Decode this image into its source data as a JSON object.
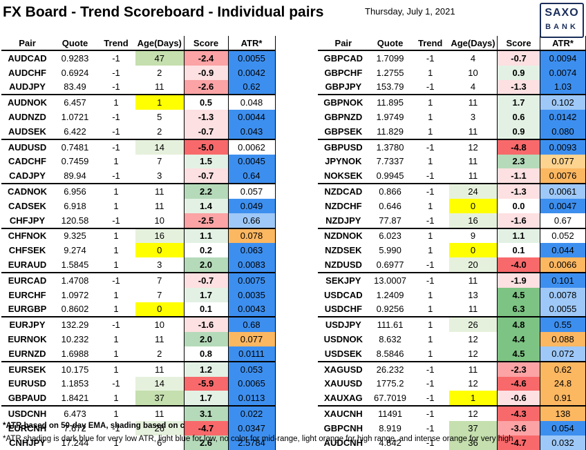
{
  "header": {
    "title": "FX Board - Trend Scoreboard - Individual pairs",
    "date": "Thursday, July 1, 2021",
    "logo_line1": "SAXO",
    "logo_line2": "BANK"
  },
  "columns": [
    "Pair",
    "Quote",
    "Trend",
    "Age(Days)",
    "Score",
    "ATR*"
  ],
  "colors": {
    "score_dark_red": "#f8696b",
    "score_red": "#fba3a5",
    "score_light_red": "#fde0e1",
    "score_dark_green": "#7dc383",
    "score_green": "#b5dab9",
    "score_light_green": "#e3f1e4",
    "atr_dark_blue": "#3d8fef",
    "atr_light_blue": "#9ec8f7",
    "atr_light_orange": "#fcd38f",
    "atr_orange": "#fcb761",
    "age_yellow": "#ffff00",
    "age_green": "#c5dfae",
    "age_light_green": "#e6f1dd"
  },
  "left_rows": [
    {
      "pair": "AUDCAD",
      "quote": "0.9283",
      "trend": "-1",
      "age": "47",
      "score": "-2.4",
      "atr": "0.0055",
      "age_c": "age_green",
      "score_c": "score_red",
      "atr_c": "atr_dark_blue"
    },
    {
      "pair": "AUDCHF",
      "quote": "0.6924",
      "trend": "-1",
      "age": "2",
      "score": "-0.9",
      "atr": "0.0042",
      "age_c": "",
      "score_c": "score_light_red",
      "atr_c": "atr_dark_blue"
    },
    {
      "pair": "AUDJPY",
      "quote": "83.49",
      "trend": "-1",
      "age": "11",
      "score": "-2.6",
      "atr": "0.62",
      "age_c": "",
      "score_c": "score_red",
      "atr_c": "atr_dark_blue"
    },
    {
      "pair": "AUDNOK",
      "quote": "6.457",
      "trend": "1",
      "age": "1",
      "score": "0.5",
      "atr": "0.048",
      "age_c": "age_yellow",
      "score_c": "",
      "atr_c": ""
    },
    {
      "pair": "AUDNZD",
      "quote": "1.0721",
      "trend": "-1",
      "age": "5",
      "score": "-1.3",
      "atr": "0.0044",
      "age_c": "",
      "score_c": "score_light_red",
      "atr_c": "atr_dark_blue"
    },
    {
      "pair": "AUDSEK",
      "quote": "6.422",
      "trend": "-1",
      "age": "2",
      "score": "-0.7",
      "atr": "0.043",
      "age_c": "",
      "score_c": "score_light_red",
      "atr_c": "atr_dark_blue"
    },
    {
      "pair": "AUDUSD",
      "quote": "0.7481",
      "trend": "-1",
      "age": "14",
      "score": "-5.0",
      "atr": "0.0062",
      "age_c": "age_light_green",
      "score_c": "score_dark_red",
      "atr_c": ""
    },
    {
      "pair": "CADCHF",
      "quote": "0.7459",
      "trend": "1",
      "age": "7",
      "score": "1.5",
      "atr": "0.0045",
      "age_c": "",
      "score_c": "score_light_green",
      "atr_c": "atr_dark_blue"
    },
    {
      "pair": "CADJPY",
      "quote": "89.94",
      "trend": "-1",
      "age": "3",
      "score": "-0.7",
      "atr": "0.64",
      "age_c": "",
      "score_c": "score_light_red",
      "atr_c": "atr_dark_blue"
    },
    {
      "pair": "CADNOK",
      "quote": "6.956",
      "trend": "1",
      "age": "11",
      "score": "2.2",
      "atr": "0.057",
      "age_c": "",
      "score_c": "score_green",
      "atr_c": ""
    },
    {
      "pair": "CADSEK",
      "quote": "6.918",
      "trend": "1",
      "age": "11",
      "score": "1.4",
      "atr": "0.049",
      "age_c": "",
      "score_c": "score_light_green",
      "atr_c": "atr_dark_blue"
    },
    {
      "pair": "CHFJPY",
      "quote": "120.58",
      "trend": "-1",
      "age": "10",
      "score": "-2.5",
      "atr": "0.66",
      "age_c": "",
      "score_c": "score_red",
      "atr_c": "atr_light_blue"
    },
    {
      "pair": "CHFNOK",
      "quote": "9.325",
      "trend": "1",
      "age": "16",
      "score": "1.1",
      "atr": "0.078",
      "age_c": "age_light_green",
      "score_c": "score_light_green",
      "atr_c": "atr_orange"
    },
    {
      "pair": "CHFSEK",
      "quote": "9.274",
      "trend": "1",
      "age": "0",
      "score": "0.2",
      "atr": "0.063",
      "age_c": "age_yellow",
      "score_c": "",
      "atr_c": "atr_dark_blue"
    },
    {
      "pair": "EURAUD",
      "quote": "1.5845",
      "trend": "1",
      "age": "3",
      "score": "2.0",
      "atr": "0.0083",
      "age_c": "",
      "score_c": "score_green",
      "atr_c": "atr_dark_blue"
    },
    {
      "pair": "EURCAD",
      "quote": "1.4708",
      "trend": "-1",
      "age": "7",
      "score": "-0.7",
      "atr": "0.0075",
      "age_c": "",
      "score_c": "score_light_red",
      "atr_c": "atr_dark_blue"
    },
    {
      "pair": "EURCHF",
      "quote": "1.0972",
      "trend": "1",
      "age": "7",
      "score": "1.7",
      "atr": "0.0035",
      "age_c": "",
      "score_c": "score_light_green",
      "atr_c": "atr_dark_blue"
    },
    {
      "pair": "EURGBP",
      "quote": "0.8602",
      "trend": "1",
      "age": "0",
      "score": "0.1",
      "atr": "0.0043",
      "age_c": "age_yellow",
      "score_c": "",
      "atr_c": "atr_dark_blue"
    },
    {
      "pair": "EURJPY",
      "quote": "132.29",
      "trend": "-1",
      "age": "10",
      "score": "-1.6",
      "atr": "0.68",
      "age_c": "",
      "score_c": "score_light_red",
      "atr_c": "atr_dark_blue"
    },
    {
      "pair": "EURNOK",
      "quote": "10.232",
      "trend": "1",
      "age": "11",
      "score": "2.0",
      "atr": "0.077",
      "age_c": "",
      "score_c": "score_green",
      "atr_c": "atr_orange"
    },
    {
      "pair": "EURNZD",
      "quote": "1.6988",
      "trend": "1",
      "age": "2",
      "score": "0.8",
      "atr": "0.0111",
      "age_c": "",
      "score_c": "",
      "atr_c": "atr_dark_blue"
    },
    {
      "pair": "EURSEK",
      "quote": "10.175",
      "trend": "1",
      "age": "11",
      "score": "1.2",
      "atr": "0.053",
      "age_c": "",
      "score_c": "score_light_green",
      "atr_c": "atr_dark_blue"
    },
    {
      "pair": "EURUSD",
      "quote": "1.1853",
      "trend": "-1",
      "age": "14",
      "score": "-5.9",
      "atr": "0.0065",
      "age_c": "age_light_green",
      "score_c": "score_dark_red",
      "atr_c": "atr_dark_blue"
    },
    {
      "pair": "GBPAUD",
      "quote": "1.8421",
      "trend": "1",
      "age": "37",
      "score": "1.7",
      "atr": "0.0113",
      "age_c": "age_green",
      "score_c": "score_light_green",
      "atr_c": "atr_dark_blue"
    },
    {
      "pair": "USDCNH",
      "quote": "6.473",
      "trend": "1",
      "age": "11",
      "score": "3.1",
      "atr": "0.022",
      "age_c": "",
      "score_c": "score_green",
      "atr_c": "atr_dark_blue"
    },
    {
      "pair": "EURCNH",
      "quote": "7.672",
      "trend": "-1",
      "age": "26",
      "score": "-4.7",
      "atr": "0.0347",
      "age_c": "age_light_green",
      "score_c": "score_dark_red",
      "atr_c": "atr_dark_blue"
    },
    {
      "pair": "CNHJPY",
      "quote": "17.244",
      "trend": "1",
      "age": "6",
      "score": "2.6",
      "atr": "2.5784",
      "age_c": "",
      "score_c": "score_green",
      "atr_c": "atr_dark_blue"
    }
  ],
  "right_rows": [
    {
      "pair": "GBPCAD",
      "quote": "1.7099",
      "trend": "-1",
      "age": "4",
      "score": "-0.7",
      "atr": "0.0094",
      "age_c": "",
      "score_c": "score_light_red",
      "atr_c": "atr_dark_blue"
    },
    {
      "pair": "GBPCHF",
      "quote": "1.2755",
      "trend": "1",
      "age": "10",
      "score": "0.9",
      "atr": "0.0074",
      "age_c": "",
      "score_c": "score_light_green",
      "atr_c": "atr_dark_blue"
    },
    {
      "pair": "GBPJPY",
      "quote": "153.79",
      "trend": "-1",
      "age": "4",
      "score": "-1.3",
      "atr": "1.03",
      "age_c": "",
      "score_c": "score_light_red",
      "atr_c": "atr_dark_blue"
    },
    {
      "pair": "GBPNOK",
      "quote": "11.895",
      "trend": "1",
      "age": "11",
      "score": "1.7",
      "atr": "0.102",
      "age_c": "",
      "score_c": "score_light_green",
      "atr_c": "atr_light_blue"
    },
    {
      "pair": "GBPNZD",
      "quote": "1.9749",
      "trend": "1",
      "age": "3",
      "score": "0.6",
      "atr": "0.0142",
      "age_c": "",
      "score_c": "score_light_green",
      "atr_c": "atr_dark_blue"
    },
    {
      "pair": "GBPSEK",
      "quote": "11.829",
      "trend": "1",
      "age": "11",
      "score": "0.9",
      "atr": "0.080",
      "age_c": "",
      "score_c": "score_light_green",
      "atr_c": "atr_dark_blue"
    },
    {
      "pair": "GBPUSD",
      "quote": "1.3780",
      "trend": "-1",
      "age": "12",
      "score": "-4.8",
      "atr": "0.0093",
      "age_c": "",
      "score_c": "score_dark_red",
      "atr_c": "atr_dark_blue"
    },
    {
      "pair": "JPYNOK",
      "quote": "7.7337",
      "trend": "1",
      "age": "11",
      "score": "2.3",
      "atr": "0.077",
      "age_c": "",
      "score_c": "score_green",
      "atr_c": "atr_light_orange"
    },
    {
      "pair": "NOKSEK",
      "quote": "0.9945",
      "trend": "-1",
      "age": "11",
      "score": "-1.1",
      "atr": "0.0076",
      "age_c": "",
      "score_c": "score_light_red",
      "atr_c": "atr_orange"
    },
    {
      "pair": "NZDCAD",
      "quote": "0.866",
      "trend": "-1",
      "age": "24",
      "score": "-1.3",
      "atr": "0.0061",
      "age_c": "age_light_green",
      "score_c": "score_light_red",
      "atr_c": "atr_light_blue"
    },
    {
      "pair": "NZDCHF",
      "quote": "0.646",
      "trend": "1",
      "age": "0",
      "score": "0.0",
      "atr": "0.0047",
      "age_c": "age_yellow",
      "score_c": "",
      "atr_c": "atr_dark_blue"
    },
    {
      "pair": "NZDJPY",
      "quote": "77.87",
      "trend": "-1",
      "age": "16",
      "score": "-1.6",
      "atr": "0.67",
      "age_c": "age_light_green",
      "score_c": "score_light_red",
      "atr_c": ""
    },
    {
      "pair": "NZDNOK",
      "quote": "6.023",
      "trend": "1",
      "age": "9",
      "score": "1.1",
      "atr": "0.052",
      "age_c": "",
      "score_c": "score_light_green",
      "atr_c": ""
    },
    {
      "pair": "NZDSEK",
      "quote": "5.990",
      "trend": "1",
      "age": "0",
      "score": "0.1",
      "atr": "0.044",
      "age_c": "age_yellow",
      "score_c": "",
      "atr_c": "atr_dark_blue"
    },
    {
      "pair": "NZDUSD",
      "quote": "0.6977",
      "trend": "-1",
      "age": "20",
      "score": "-4.0",
      "atr": "0.0066",
      "age_c": "age_light_green",
      "score_c": "score_dark_red",
      "atr_c": "atr_orange"
    },
    {
      "pair": "SEKJPY",
      "quote": "13.0007",
      "trend": "-1",
      "age": "11",
      "score": "-1.9",
      "atr": "0.101",
      "age_c": "",
      "score_c": "score_light_red",
      "atr_c": "atr_dark_blue"
    },
    {
      "pair": "USDCAD",
      "quote": "1.2409",
      "trend": "1",
      "age": "13",
      "score": "4.5",
      "atr": "0.0078",
      "age_c": "",
      "score_c": "score_dark_green",
      "atr_c": "atr_light_blue"
    },
    {
      "pair": "USDCHF",
      "quote": "0.9256",
      "trend": "1",
      "age": "11",
      "score": "6.3",
      "atr": "0.0055",
      "age_c": "",
      "score_c": "score_dark_green",
      "atr_c": "atr_light_blue"
    },
    {
      "pair": "USDJPY",
      "quote": "111.61",
      "trend": "1",
      "age": "26",
      "score": "4.8",
      "atr": "0.55",
      "age_c": "age_light_green",
      "score_c": "score_dark_green",
      "atr_c": "atr_dark_blue"
    },
    {
      "pair": "USDNOK",
      "quote": "8.632",
      "trend": "1",
      "age": "12",
      "score": "4.4",
      "atr": "0.088",
      "age_c": "",
      "score_c": "score_dark_green",
      "atr_c": "atr_orange"
    },
    {
      "pair": "USDSEK",
      "quote": "8.5846",
      "trend": "1",
      "age": "12",
      "score": "4.5",
      "atr": "0.072",
      "age_c": "",
      "score_c": "score_dark_green",
      "atr_c": "atr_light_blue"
    },
    {
      "pair": "XAGUSD",
      "quote": "26.232",
      "trend": "-1",
      "age": "11",
      "score": "-2.3",
      "atr": "0.62",
      "age_c": "",
      "score_c": "score_red",
      "atr_c": "atr_orange"
    },
    {
      "pair": "XAUUSD",
      "quote": "1775.2",
      "trend": "-1",
      "age": "12",
      "score": "-4.6",
      "atr": "24.8",
      "age_c": "",
      "score_c": "score_dark_red",
      "atr_c": "atr_orange"
    },
    {
      "pair": "XAUXAG",
      "quote": "67.7019",
      "trend": "-1",
      "age": "1",
      "score": "-0.6",
      "atr": "0.91",
      "age_c": "age_yellow",
      "score_c": "score_light_red",
      "atr_c": "atr_orange"
    },
    {
      "pair": "XAUCNH",
      "quote": "11491",
      "trend": "-1",
      "age": "12",
      "score": "-4.3",
      "atr": "138",
      "age_c": "",
      "score_c": "score_dark_red",
      "atr_c": "atr_orange"
    },
    {
      "pair": "GBPCNH",
      "quote": "8.919",
      "trend": "-1",
      "age": "37",
      "score": "-3.6",
      "atr": "0.054",
      "age_c": "age_green",
      "score_c": "score_red",
      "atr_c": "atr_dark_blue"
    },
    {
      "pair": "AUDCNH",
      "quote": "4.842",
      "trend": "-1",
      "age": "36",
      "score": "-4.7",
      "atr": "0.032",
      "age_c": "age_green",
      "score_c": "score_dark_red",
      "atr_c": "atr_light_blue"
    }
  ],
  "footnotes": {
    "note1": "*ATR based on 50-day EMA, shading based on co",
    "note2": "*ATR shading is dark blue for very low ATR, light blue for low, no color for mid-range, light orange for high range, and intense orange for very high"
  }
}
